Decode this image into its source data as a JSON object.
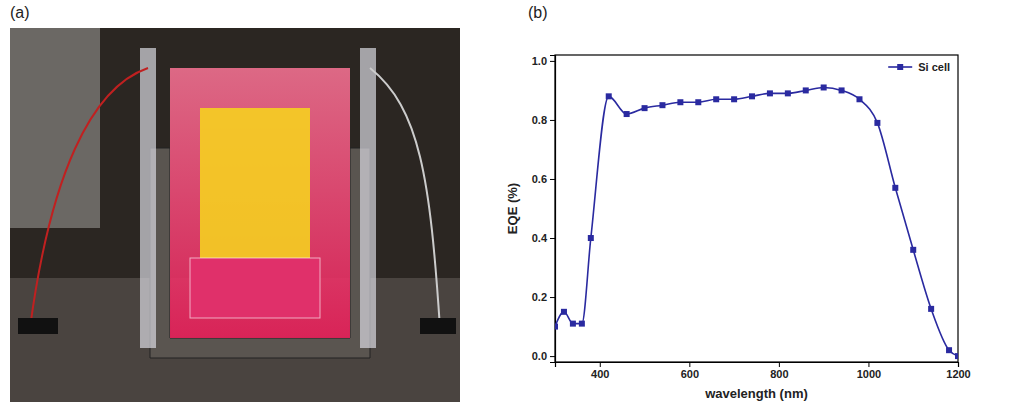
{
  "panel_labels": [
    "(a)",
    "(b)"
  ],
  "chart_data": {
    "type": "line",
    "x_label": "wavelength (nm)",
    "y_label": "EQE (%)",
    "x": [
      300,
      320,
      340,
      360,
      380,
      420,
      460,
      500,
      540,
      580,
      620,
      660,
      700,
      740,
      780,
      820,
      860,
      900,
      940,
      980,
      1020,
      1060,
      1100,
      1140,
      1180,
      1200
    ],
    "series": [
      {
        "name": "Si cell",
        "color": "#2a2aa0",
        "marker": "square",
        "line_style": "solid",
        "values": [
          0.1,
          0.15,
          0.11,
          0.11,
          0.4,
          0.88,
          0.82,
          0.84,
          0.85,
          0.86,
          0.86,
          0.87,
          0.87,
          0.88,
          0.89,
          0.89,
          0.9,
          0.91,
          0.9,
          0.87,
          0.79,
          0.57,
          0.36,
          0.16,
          0.02,
          0.0
        ]
      }
    ],
    "xlim": [
      300,
      1200
    ],
    "xticks": [
      400,
      600,
      800,
      1000,
      1200
    ],
    "ylim": [
      -0.02,
      1.02
    ],
    "yticks": [
      {
        "value": 0,
        "label": "0.0"
      },
      0.2,
      0.4,
      0.6,
      0.8,
      {
        "value": 1,
        "label": "1.0"
      }
    ],
    "legend": "top-right",
    "grid": false
  }
}
